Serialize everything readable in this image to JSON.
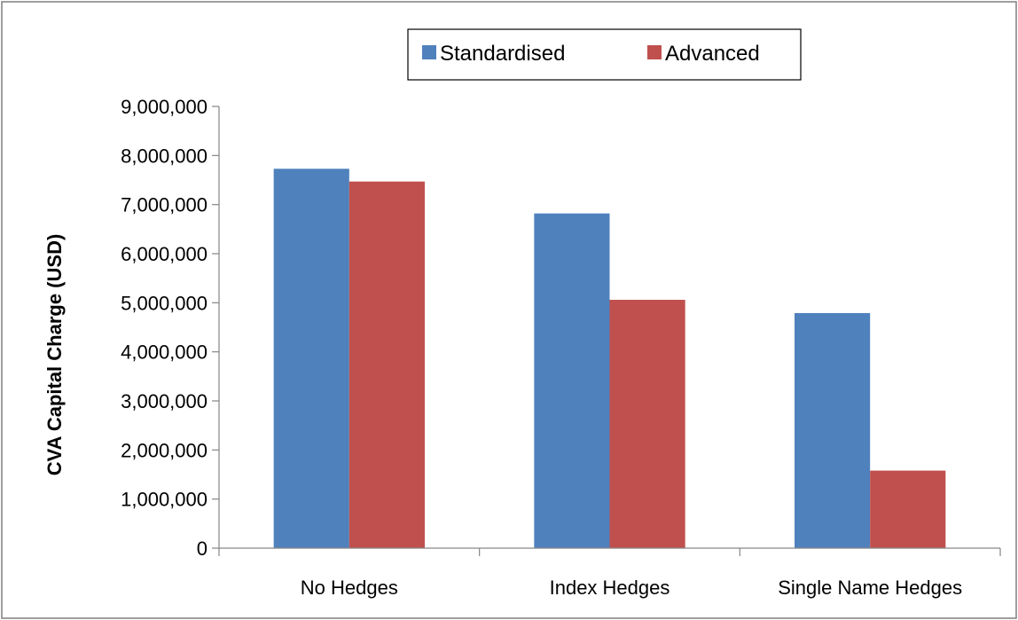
{
  "chart_data": {
    "type": "bar",
    "title": "",
    "xlabel": "",
    "ylabel": "CVA Capital Charge (USD)",
    "categories": [
      "No Hedges",
      "Index Hedges",
      "Single Name Hedges"
    ],
    "series": [
      {
        "name": "Standardised",
        "color": "#4F81BD",
        "values": [
          7730000,
          6820000,
          4790000
        ]
      },
      {
        "name": "Advanced",
        "color": "#C0504D",
        "values": [
          7470000,
          5060000,
          1580000
        ]
      }
    ],
    "ylim": [
      0,
      9000000
    ],
    "yticks": [
      0,
      1000000,
      2000000,
      3000000,
      4000000,
      5000000,
      6000000,
      7000000,
      8000000,
      9000000
    ],
    "ytick_labels": [
      "0",
      "1,000,000",
      "2,000,000",
      "3,000,000",
      "4,000,000",
      "5,000,000",
      "6,000,000",
      "7,000,000",
      "8,000,000",
      "9,000,000"
    ],
    "grid": false,
    "legend_position": "top-center"
  }
}
